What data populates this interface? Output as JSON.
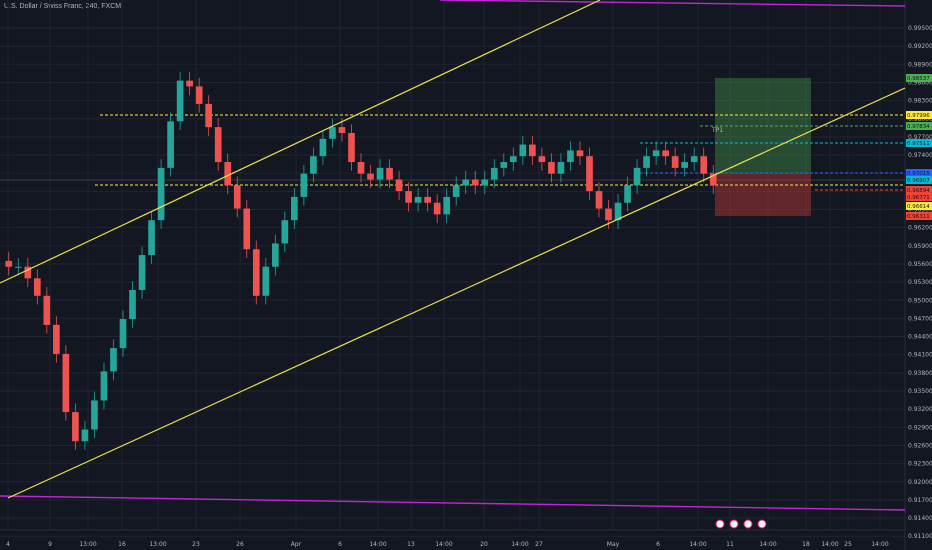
{
  "chart_data": {
    "type": "candlestick",
    "title": "U.S. Dollar / Swiss Franc, 240, FXCM",
    "y_ticks": [
      "0.99500",
      "0.99200",
      "0.98900",
      "0.98600",
      "0.98300",
      "0.98000",
      "0.97700",
      "0.97400",
      "0.97100",
      "0.96800",
      "0.96500",
      "0.96200",
      "0.95900",
      "0.95600",
      "0.95300",
      "0.95000",
      "0.94700",
      "0.94400",
      "0.94100",
      "0.93800",
      "0.93500",
      "0.93200",
      "0.92900",
      "0.92600",
      "0.92300",
      "0.92000",
      "0.91700",
      "0.91400",
      "0.91100"
    ],
    "x_ticks": [
      "4",
      "9",
      "13:00",
      "16",
      "13:00",
      "23",
      "26",
      "Apr",
      "6",
      "14:00",
      "13",
      "14:00",
      "20",
      "14:00",
      "27",
      "May",
      "6",
      "14:00",
      "11",
      "14:00",
      "18",
      "14:00",
      "25",
      "14:00"
    ],
    "ylim": [
      0.9111,
      0.9988
    ],
    "support_channel_lower": [
      [
        0.918,
        0.9725
      ]
    ],
    "price_labels": [
      {
        "text": "0.98537",
        "color": "#4caf50"
      },
      {
        "text": "0.97996",
        "color": "#ffeb3b"
      },
      {
        "text": "0.97834",
        "color": "#4caf50"
      },
      {
        "text": "0.97511",
        "color": "#00bcd4"
      },
      {
        "text": "0.97015",
        "color": "#2962ff"
      },
      {
        "text": "0.96907",
        "color": "#00bcd4"
      },
      {
        "text": "0.96894",
        "color": "#f44336"
      },
      {
        "text": "0.96771",
        "color": "#f44336"
      },
      {
        "text": "0.96614",
        "color": "#ffeb3b"
      },
      {
        "text": "0.96311",
        "color": "#f44336"
      }
    ],
    "annotation": "TP1",
    "ohlc_close": [
      0.955,
      0.955,
      0.953,
      0.95,
      0.945,
      0.94,
      0.93,
      0.925,
      0.927,
      0.932,
      0.937,
      0.941,
      0.946,
      0.951,
      0.957,
      0.963,
      0.972,
      0.98,
      0.987,
      0.986,
      0.983,
      0.979,
      0.973,
      0.969,
      0.965,
      0.958,
      0.95,
      0.955,
      0.959,
      0.963,
      0.967,
      0.971,
      0.974,
      0.977,
      0.979,
      0.978,
      0.973,
      0.971,
      0.97,
      0.972,
      0.97,
      0.968,
      0.966,
      0.967,
      0.966,
      0.964,
      0.967,
      0.969,
      0.97,
      0.969,
      0.97,
      0.972,
      0.973,
      0.974,
      0.976,
      0.974,
      0.973,
      0.971,
      0.973,
      0.975,
      0.974,
      0.968,
      0.965,
      0.963,
      0.966,
      0.969,
      0.972,
      0.974,
      0.975,
      0.974,
      0.972,
      0.973,
      0.974,
      0.971,
      0.969
    ]
  }
}
